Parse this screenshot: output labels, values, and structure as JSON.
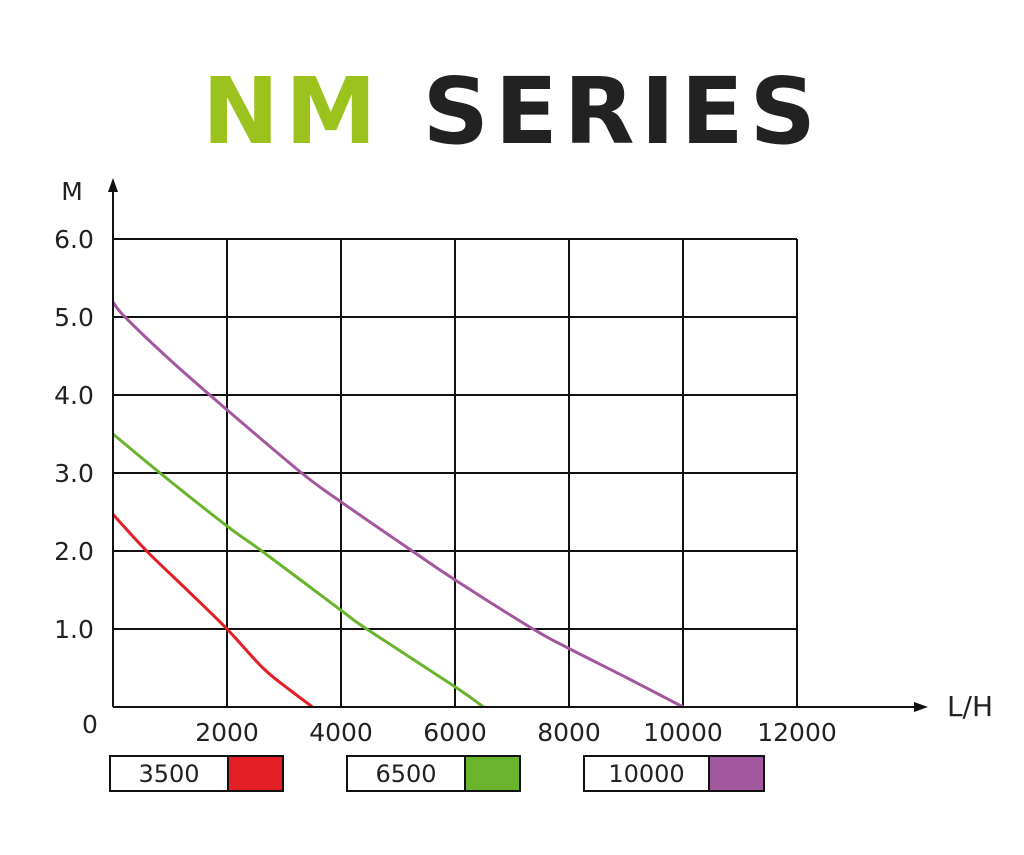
{
  "chart_data": {
    "type": "line",
    "title_part1": "NM",
    "title_part2": "SERIES",
    "title_colors": {
      "part1": "#9cc31d",
      "part2": "#222222"
    },
    "xlabel": "L/H",
    "ylabel": "M",
    "xlim": [
      0,
      12000
    ],
    "ylim": [
      0,
      6
    ],
    "x_ticks": [
      "2000",
      "4000",
      "6000",
      "8000",
      "10000",
      "12000"
    ],
    "x_tick_values": [
      2000,
      4000,
      6000,
      8000,
      10000,
      12000
    ],
    "y_ticks": [
      "0",
      "1.0",
      "2.0",
      "3.0",
      "4.0",
      "5.0",
      "6.0"
    ],
    "y_tick_values": [
      0,
      1,
      2,
      3,
      4,
      5,
      6
    ],
    "grid": true,
    "legend_placement": "bottom",
    "series": [
      {
        "name": "3500",
        "color": "#e31e24",
        "points": [
          [
            0,
            2.47
          ],
          [
            590,
            2.0
          ],
          [
            1300,
            1.5
          ],
          [
            2000,
            1.0
          ],
          [
            2630,
            0.5
          ],
          [
            3100,
            0.22
          ],
          [
            3500,
            0
          ]
        ]
      },
      {
        "name": "6500",
        "color": "#6ab42d",
        "points": [
          [
            0,
            3.5
          ],
          [
            825,
            3.0
          ],
          [
            2000,
            2.32
          ],
          [
            2610,
            2.0
          ],
          [
            4000,
            1.24
          ],
          [
            4450,
            1.0
          ],
          [
            6000,
            0.26
          ],
          [
            6500,
            0
          ]
        ]
      },
      {
        "name": "10000",
        "color": "#a3579f",
        "points": [
          [
            0,
            5.19
          ],
          [
            210,
            5.0
          ],
          [
            1000,
            4.45
          ],
          [
            2000,
            3.81
          ],
          [
            3310,
            3.0
          ],
          [
            4000,
            2.63
          ],
          [
            5250,
            2.0
          ],
          [
            6000,
            1.63
          ],
          [
            7370,
            1.0
          ],
          [
            8000,
            0.75
          ],
          [
            9000,
            0.38
          ],
          [
            10000,
            0
          ]
        ]
      }
    ]
  }
}
